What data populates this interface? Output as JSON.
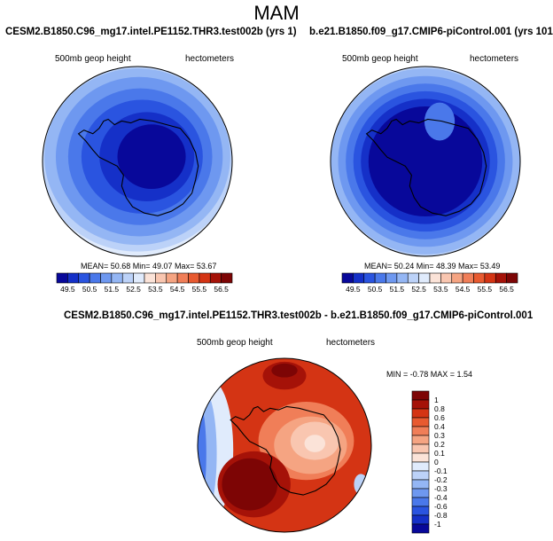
{
  "title": "MAM",
  "colors": {
    "blue_scale": [
      "#08089a",
      "#1530c8",
      "#2a54e0",
      "#4a78ea",
      "#6e98f0",
      "#94b6f4",
      "#bcd2f8",
      "#e0ebfc"
    ],
    "red_scale": [
      "#fbe3d8",
      "#f9c6b0",
      "#f5a482",
      "#f07e58",
      "#e85a30",
      "#d43414",
      "#a51208",
      "#7d0505"
    ]
  },
  "chart_data": [
    {
      "type": "heatmap",
      "title": "CESM2.B1850.C96_mg17.intel.PE1152.THR3.test002b (yrs 1)",
      "variable_label": "500mb geop height",
      "units_label": "hectometers",
      "stats": "MEAN= 50.68  Min= 49.07  Max= 53.67",
      "mean": 50.68,
      "min": 49.07,
      "max": 53.67,
      "colorbar_ticks": [
        "49.5",
        "50.5",
        "51.5",
        "52.5",
        "53.5",
        "54.5",
        "55.5",
        "56.5"
      ],
      "levels": [
        49.5,
        50.0,
        50.5,
        51.0,
        51.5,
        52.0,
        52.5,
        53.0,
        53.5,
        54.0,
        54.5,
        55.0,
        55.5,
        56.0,
        56.5
      ]
    },
    {
      "type": "heatmap",
      "title": "b.e21.B1850.f09_g17.CMIP6-piControl.001 (yrs 101)",
      "variable_label": "500mb geop height",
      "units_label": "hectometers",
      "stats": "MEAN= 50.24  Min= 48.39  Max= 53.49",
      "mean": 50.24,
      "min": 48.39,
      "max": 53.49,
      "colorbar_ticks": [
        "49.5",
        "50.5",
        "51.5",
        "52.5",
        "53.5",
        "54.5",
        "55.5",
        "56.5"
      ],
      "levels": [
        49.5,
        50.0,
        50.5,
        51.0,
        51.5,
        52.0,
        52.5,
        53.0,
        53.5,
        54.0,
        54.5,
        55.0,
        55.5,
        56.0,
        56.5
      ]
    },
    {
      "type": "heatmap",
      "title": "CESM2.B1850.C96_mg17.intel.PE1152.THR3.test002b - b.e21.B1850.f09_g17.CMIP6-piControl.001",
      "variable_label": "500mb geop height",
      "units_label": "hectometers",
      "stats": "MIN = -0.78 MAX =  1.54",
      "min": -0.78,
      "max": 1.54,
      "colorbar_labels": [
        "1",
        "0.8",
        "0.6",
        "0.4",
        "0.3",
        "0.2",
        "0.1",
        "0",
        "-0.1",
        "-0.2",
        "-0.3",
        "-0.4",
        "-0.6",
        "-0.8",
        "-1"
      ]
    }
  ]
}
